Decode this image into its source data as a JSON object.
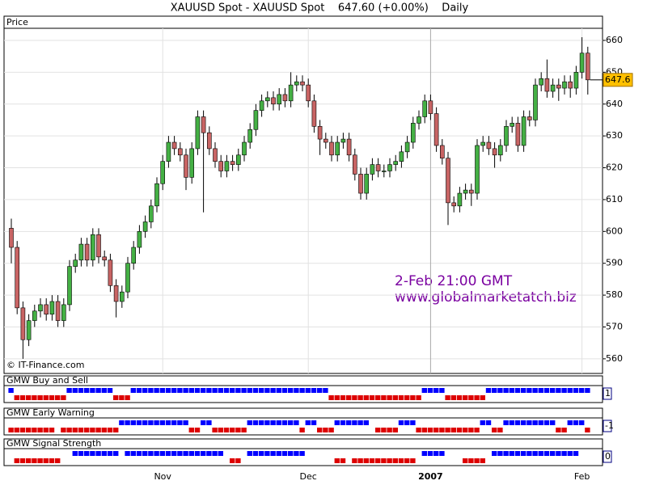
{
  "chart_data": {
    "type": "candlestick",
    "title": "XAUUSD Spot - XAUUSD Spot    647.60 (+0.00%)    Daily",
    "panel_label": "Price",
    "watermark": "© IT-Finance.com",
    "annotations": [
      "2-Feb 21:00 GMT",
      "www.globalmarketatch.biz"
    ],
    "last_price_label": "647.6",
    "categories": [
      null,
      null,
      null,
      null,
      null,
      null,
      null,
      null,
      null,
      null,
      null,
      null,
      null,
      null,
      null,
      null,
      null,
      null,
      null,
      null,
      null,
      null,
      null,
      null,
      null,
      null,
      "Nov",
      null,
      null,
      null,
      null,
      null,
      null,
      null,
      null,
      null,
      null,
      null,
      null,
      null,
      null,
      null,
      null,
      null,
      null,
      null,
      null,
      null,
      null,
      null,
      null,
      "Dec",
      null,
      null,
      null,
      null,
      null,
      null,
      null,
      null,
      null,
      null,
      null,
      null,
      null,
      null,
      null,
      null,
      null,
      null,
      null,
      null,
      "2007",
      null,
      null,
      null,
      null,
      null,
      null,
      null,
      null,
      null,
      null,
      null,
      null,
      null,
      null,
      null,
      null,
      null,
      null,
      null,
      null,
      null,
      null,
      null,
      null,
      null,
      "Feb",
      null
    ],
    "open": [
      601,
      595,
      576,
      566,
      572,
      575,
      577,
      574,
      578,
      572,
      577,
      589,
      591,
      596,
      591,
      599,
      592,
      591,
      583,
      578,
      581,
      590,
      595,
      600,
      603,
      608,
      615,
      622,
      628,
      626,
      624,
      617,
      626,
      636,
      631,
      626,
      622,
      619,
      622,
      621,
      624,
      628,
      632,
      638,
      641,
      642,
      640,
      643,
      641,
      646,
      647,
      646,
      641,
      633,
      629,
      628,
      624,
      628,
      629,
      624,
      618,
      612,
      618,
      621,
      619,
      619,
      621,
      622,
      625,
      628,
      634,
      636,
      641,
      637,
      627,
      623,
      609,
      608,
      612,
      613,
      612,
      627,
      628,
      626,
      624,
      627,
      633,
      634,
      627,
      636,
      635,
      646,
      648,
      644,
      646,
      645,
      647,
      645,
      650,
      656
    ],
    "high": [
      604,
      597,
      578,
      574,
      577,
      579,
      579,
      580,
      580,
      579,
      591,
      593,
      598,
      598,
      601,
      601,
      594,
      593,
      585,
      583,
      592,
      597,
      602,
      605,
      610,
      617,
      624,
      630,
      630,
      628,
      626,
      628,
      638,
      638,
      633,
      628,
      624,
      624,
      624,
      626,
      630,
      634,
      640,
      643,
      644,
      644,
      645,
      645,
      650,
      649,
      649,
      648,
      643,
      635,
      631,
      630,
      630,
      631,
      631,
      626,
      620,
      620,
      623,
      623,
      621,
      623,
      624,
      627,
      630,
      636,
      638,
      643,
      643,
      639,
      629,
      625,
      611,
      614,
      615,
      615,
      629,
      630,
      630,
      628,
      629,
      635,
      636,
      636,
      638,
      638,
      648,
      650,
      654,
      648,
      648,
      649,
      649,
      652,
      661,
      658
    ],
    "low": [
      590,
      574,
      560,
      564,
      570,
      573,
      572,
      572,
      570,
      570,
      575,
      587,
      589,
      589,
      589,
      590,
      589,
      581,
      573,
      576,
      579,
      588,
      593,
      598,
      601,
      606,
      613,
      620,
      624,
      622,
      613,
      615,
      624,
      606,
      624,
      620,
      617,
      617,
      619,
      619,
      622,
      626,
      630,
      636,
      639,
      638,
      638,
      639,
      639,
      644,
      644,
      639,
      631,
      624,
      626,
      622,
      622,
      626,
      622,
      616,
      610,
      610,
      616,
      617,
      617,
      617,
      619,
      620,
      623,
      626,
      632,
      634,
      635,
      625,
      621,
      602,
      606,
      606,
      610,
      608,
      610,
      625,
      624,
      620,
      622,
      625,
      631,
      625,
      625,
      633,
      633,
      644,
      642,
      642,
      641,
      643,
      642,
      643,
      648,
      643
    ],
    "close": [
      595,
      576,
      566,
      572,
      575,
      577,
      574,
      578,
      572,
      577,
      589,
      591,
      596,
      591,
      599,
      592,
      591,
      583,
      578,
      581,
      590,
      595,
      600,
      603,
      608,
      615,
      622,
      628,
      626,
      624,
      617,
      626,
      636,
      631,
      626,
      622,
      619,
      622,
      621,
      624,
      628,
      632,
      638,
      641,
      642,
      640,
      643,
      641,
      646,
      647,
      646,
      641,
      633,
      629,
      628,
      624,
      628,
      629,
      624,
      618,
      612,
      618,
      621,
      619,
      619,
      621,
      622,
      625,
      628,
      634,
      636,
      641,
      637,
      627,
      623,
      609,
      608,
      612,
      613,
      612,
      627,
      628,
      626,
      624,
      627,
      633,
      634,
      627,
      636,
      635,
      646,
      648,
      644,
      646,
      645,
      647,
      645,
      650,
      656,
      647.6
    ],
    "up_color": "#44b044",
    "down_color": "#c86464",
    "ylim": [
      555.4,
      663.8
    ],
    "yticks": [
      560,
      570,
      580,
      590,
      600,
      610,
      620,
      630,
      640,
      650,
      660
    ],
    "grid": true,
    "indicators": [
      {
        "name": "GMW Buy and Sell",
        "color": "#000080",
        "positive_color": "#0000ff",
        "negative_color": "#dd0000",
        "values": [
          1,
          -1,
          -1,
          -1,
          -1,
          -1,
          -1,
          -1,
          -1,
          -1,
          1,
          1,
          1,
          1,
          1,
          1,
          1,
          1,
          -1,
          -1,
          -1,
          1,
          1,
          1,
          1,
          1,
          1,
          1,
          1,
          1,
          1,
          1,
          1,
          1,
          1,
          1,
          1,
          1,
          1,
          1,
          1,
          1,
          1,
          1,
          1,
          1,
          1,
          1,
          1,
          1,
          1,
          1,
          1,
          1,
          1,
          -1,
          -1,
          -1,
          -1,
          -1,
          -1,
          -1,
          -1,
          -1,
          -1,
          -1,
          -1,
          -1,
          -1,
          -1,
          -1,
          1,
          1,
          1,
          1,
          -1,
          -1,
          -1,
          -1,
          -1,
          -1,
          -1,
          1,
          1,
          1,
          1,
          1,
          1,
          1,
          1,
          1,
          1,
          1,
          1,
          1,
          1,
          1,
          1,
          1,
          1
        ]
      },
      {
        "name": "GMW Early Warning",
        "color": "#c00000",
        "positive_color": "#0000ff",
        "negative_color": "#dd0000",
        "values": [
          -1,
          -1,
          -1,
          -1,
          -1,
          -1,
          -1,
          -1,
          0,
          -1,
          -1,
          -1,
          -1,
          -1,
          -1,
          -1,
          -1,
          -1,
          -1,
          1,
          1,
          1,
          1,
          1,
          1,
          1,
          1,
          1,
          1,
          1,
          1,
          -1,
          -1,
          1,
          1,
          -1,
          -1,
          -1,
          -1,
          -1,
          -1,
          1,
          1,
          1,
          1,
          1,
          1,
          1,
          1,
          1,
          -1,
          1,
          1,
          -1,
          -1,
          -1,
          1,
          1,
          1,
          1,
          1,
          1,
          0,
          -1,
          -1,
          -1,
          -1,
          1,
          1,
          1,
          -1,
          -1,
          -1,
          -1,
          -1,
          -1,
          -1,
          -1,
          -1,
          -1,
          -1,
          1,
          1,
          -1,
          -1,
          1,
          1,
          1,
          1,
          1,
          1,
          1,
          1,
          1,
          -1,
          -1,
          1,
          1,
          1,
          -1
        ]
      },
      {
        "name": "GMW Signal Strength",
        "color": "#000080",
        "positive_color": "#0000ff",
        "negative_color": "#dd0000",
        "values": [
          0,
          -1,
          -1,
          -1,
          -1,
          -1,
          -1,
          -1,
          -1,
          0,
          0,
          1,
          1,
          1,
          1,
          1,
          1,
          1,
          1,
          0,
          1,
          1,
          1,
          1,
          1,
          1,
          1,
          1,
          1,
          1,
          1,
          1,
          1,
          1,
          1,
          1,
          1,
          0,
          -1,
          -1,
          0,
          1,
          1,
          1,
          1,
          1,
          1,
          1,
          1,
          1,
          1,
          0,
          0,
          0,
          0,
          0,
          -1,
          -1,
          0,
          -1,
          -1,
          -1,
          -1,
          -1,
          -1,
          -1,
          -1,
          -1,
          -1,
          -1,
          0,
          1,
          1,
          1,
          1,
          0,
          0,
          0,
          -1,
          -1,
          -1,
          -1,
          0,
          1,
          1,
          1,
          1,
          1,
          1,
          1,
          1,
          1,
          1,
          1,
          1,
          1,
          1,
          1,
          0,
          0
        ]
      }
    ]
  }
}
